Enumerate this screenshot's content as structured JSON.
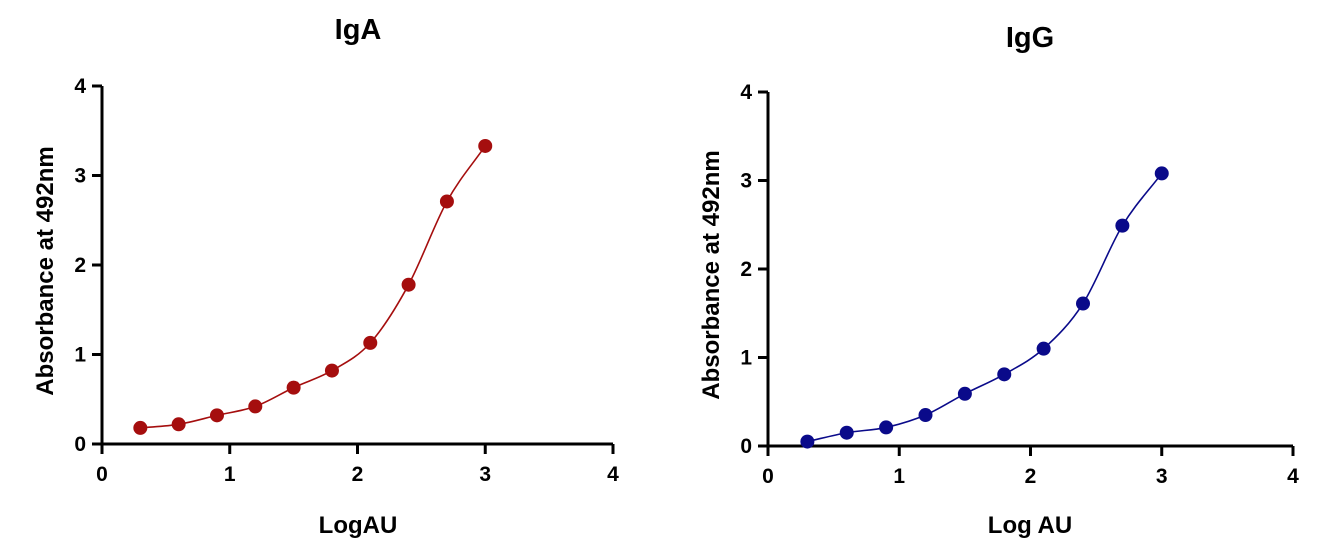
{
  "chart_data": [
    {
      "type": "scatter",
      "title": "IgA",
      "xlabel": "LogAU",
      "ylabel": "Absorbance at 492nm",
      "xlim": [
        0,
        4
      ],
      "ylim": [
        0,
        4
      ],
      "xticks": [
        "0",
        "1",
        "2",
        "3",
        "4"
      ],
      "yticks": [
        "0",
        "1",
        "2",
        "3",
        "4"
      ],
      "grid": false,
      "legend": "none",
      "fit_curve": "sigmoidal",
      "color": "#a50e0e",
      "series": [
        {
          "x": [
            0.3,
            0.6,
            0.9,
            1.2,
            1.5,
            1.8,
            2.1,
            2.4,
            2.7,
            3.0
          ],
          "y": [
            0.18,
            0.22,
            0.32,
            0.42,
            0.63,
            0.82,
            1.13,
            1.78,
            2.71,
            3.33
          ]
        }
      ]
    },
    {
      "type": "scatter",
      "title": "IgG",
      "xlabel": "Log AU",
      "ylabel": "Absorbance at 492nm",
      "xlim": [
        0,
        4
      ],
      "ylim": [
        0,
        4
      ],
      "xticks": [
        "0",
        "1",
        "2",
        "3",
        "4"
      ],
      "yticks": [
        "0",
        "1",
        "2",
        "3",
        "4"
      ],
      "grid": false,
      "legend": "none",
      "fit_curve": "sigmoidal",
      "color": "#0a0a8a",
      "series": [
        {
          "x": [
            0.3,
            0.6,
            0.9,
            1.2,
            1.5,
            1.8,
            2.1,
            2.4,
            2.7,
            3.0
          ],
          "y": [
            0.05,
            0.15,
            0.21,
            0.35,
            0.59,
            0.81,
            1.1,
            1.61,
            2.49,
            3.08
          ]
        }
      ]
    }
  ]
}
